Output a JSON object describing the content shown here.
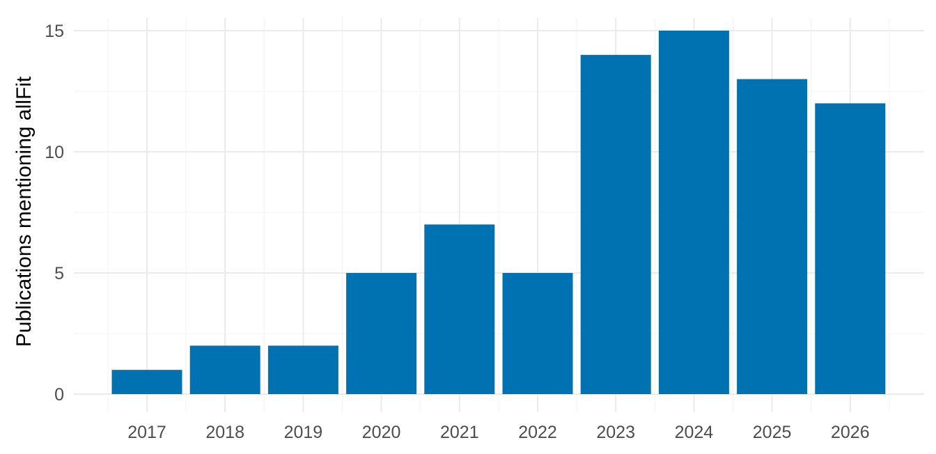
{
  "chart_data": {
    "type": "bar",
    "categories": [
      "2017",
      "2018",
      "2019",
      "2020",
      "2021",
      "2022",
      "2023",
      "2024",
      "2025",
      "2026"
    ],
    "values": [
      1,
      2,
      2,
      5,
      7,
      5,
      14,
      15,
      13,
      12
    ],
    "title": "",
    "xlabel": "",
    "ylabel": "Publications mentioning allFit",
    "ylim": [
      0,
      15
    ],
    "yticks": [
      "0",
      "5",
      "10",
      "15"
    ],
    "grid": true,
    "legend": "none",
    "bar_color": "#0072b2",
    "grid_color": "#ebebeb"
  }
}
